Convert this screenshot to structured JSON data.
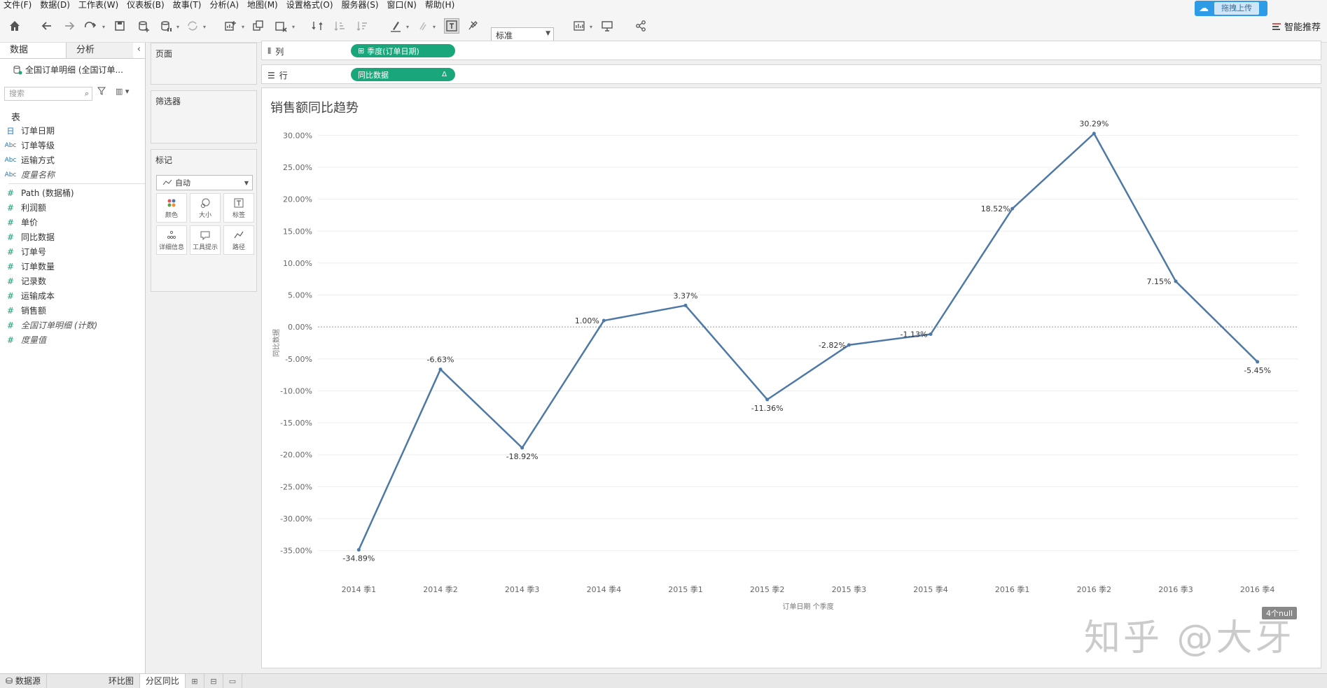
{
  "menu": [
    "文件(F)",
    "数据(D)",
    "工作表(W)",
    "仪表板(B)",
    "故事(T)",
    "分析(A)",
    "地图(M)",
    "设置格式(O)",
    "服务器(S)",
    "窗口(N)",
    "帮助(H)"
  ],
  "toolbar": {
    "fit_select": "标准",
    "upload_label": "拖拽上传",
    "smart_label": "智能推荐"
  },
  "data_pane": {
    "tabs": [
      "数据",
      "分析"
    ],
    "datasource": "全国订单明细 (全国订单...",
    "search_placeholder": "搜索",
    "table_header": "表",
    "dimensions": [
      {
        "icon": "日",
        "label": "订单日期",
        "type": "date",
        "italic": false
      },
      {
        "icon": "Abc",
        "label": "订单等级",
        "type": "str",
        "italic": false
      },
      {
        "icon": "Abc",
        "label": "运输方式",
        "type": "str",
        "italic": false
      },
      {
        "icon": "Abc",
        "label": "度量名称",
        "type": "str",
        "italic": true
      }
    ],
    "measures": [
      {
        "icon": "#",
        "label": "Path (数据桶)",
        "italic": false
      },
      {
        "icon": "#",
        "label": "利润额",
        "italic": false
      },
      {
        "icon": "#",
        "label": "单价",
        "italic": false
      },
      {
        "icon": "#",
        "label": "同比数据",
        "italic": false
      },
      {
        "icon": "#",
        "label": "订单号",
        "italic": false
      },
      {
        "icon": "#",
        "label": "订单数量",
        "italic": false
      },
      {
        "icon": "#",
        "label": "记录数",
        "italic": false
      },
      {
        "icon": "#",
        "label": "运输成本",
        "italic": false
      },
      {
        "icon": "#",
        "label": "销售额",
        "italic": false
      },
      {
        "icon": "#",
        "label": "全国订单明细 (计数)",
        "italic": true
      },
      {
        "icon": "#",
        "label": "度量值",
        "italic": true
      }
    ]
  },
  "cards": {
    "pages": "页面",
    "filters": "筛选器",
    "marks": "标记",
    "marks_type": "自动",
    "mark_buttons": [
      "颜色",
      "大小",
      "标签",
      "详细信息",
      "工具提示",
      "路径"
    ]
  },
  "shelves": {
    "columns_label": "列",
    "columns_pill": "季度(订单日期)",
    "rows_label": "行",
    "rows_pill": "同比数据",
    "rows_pill_symbol": "Δ"
  },
  "view": {
    "title": "销售额同比趋势",
    "null_badge": "4个null"
  },
  "chart_data": {
    "type": "line",
    "title": "销售额同比趋势",
    "xlabel": "订单日期 个季度",
    "ylabel": "同比数据",
    "categories": [
      "2014 季1",
      "2014 季2",
      "2014 季3",
      "2014 季4",
      "2015 季1",
      "2015 季2",
      "2015 季3",
      "2015 季4",
      "2016 季1",
      "2016 季2",
      "2016 季3",
      "2016 季4"
    ],
    "values": [
      -34.89,
      -6.63,
      -18.92,
      1.0,
      3.37,
      -11.36,
      -2.82,
      -1.13,
      18.52,
      30.29,
      7.15,
      -5.45
    ],
    "labels": [
      "-34.89%",
      "-6.63%",
      "-18.92%",
      "1.00%",
      "3.37%",
      "-11.36%",
      "-2.82%",
      "-1.13%",
      "18.52%",
      "30.29%",
      "7.15%",
      "-5.45%"
    ],
    "yticks": [
      30,
      25,
      20,
      15,
      10,
      5,
      0,
      -5,
      -10,
      -15,
      -20,
      -25,
      -30,
      -35
    ],
    "ytick_labels": [
      "30.00%",
      "25.00%",
      "20.00%",
      "15.00%",
      "10.00%",
      "5.00%",
      "0.00%",
      "-5.00%",
      "-10.00%",
      "-15.00%",
      "-20.00%",
      "-25.00%",
      "-30.00%",
      "-35.00%"
    ],
    "ylim": [
      -38,
      33
    ],
    "line_color": "#4e79a7",
    "grid": true
  },
  "bottom": {
    "datasource_tab": "数据源",
    "sheets": [
      "环比图",
      "分区同比"
    ],
    "active_sheet": "分区同比"
  },
  "watermark": "知乎 @大牙"
}
